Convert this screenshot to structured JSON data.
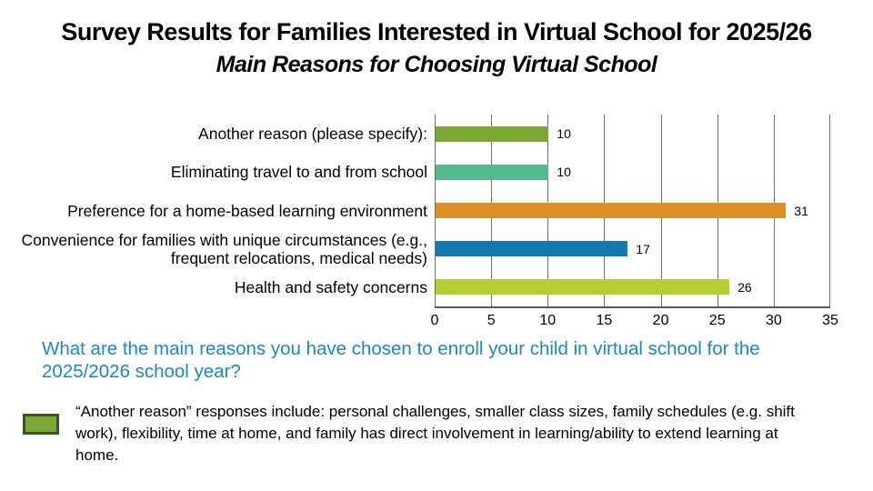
{
  "title": "Survey Results for Families Interested in Virtual School for 2025/26",
  "subtitle": "Main Reasons for Choosing Virtual School",
  "question": "What are the main reasons you have chosen to enroll your child in virtual school for the 2025/2026 school year?",
  "footnote": {
    "text": "“Another reason” responses include: personal challenges, smaller class sizes, family schedules (e.g. shift work), flexibility, time at home, and family has direct involvement in learning/ability to extend learning at home.",
    "swatch_color": "#7AA832",
    "swatch_border_color": "#375623"
  },
  "colors": {
    "question_text": "#1B87C5",
    "gridline": "#6E6E6E",
    "axis_line": "#595959",
    "value_label_text": "#000000"
  },
  "chart_data": {
    "type": "bar",
    "orientation": "horizontal",
    "title": "Main Reasons for Choosing Virtual School",
    "categories": [
      "Another reason (please specify):",
      "Eliminating travel to and from school",
      "Preference for a home-based learning environment",
      "Convenience for families with unique circumstances (e.g., frequent relocations, medical needs)",
      "Health and safety concerns"
    ],
    "values": [
      10,
      10,
      31,
      17,
      26
    ],
    "bar_colors": [
      "#7AA832",
      "#56B88D",
      "#DE8F26",
      "#1477B0",
      "#BBCE31"
    ],
    "xlabel": "",
    "ylabel": "",
    "xlim": [
      0,
      35
    ],
    "xticks": [
      0,
      5,
      10,
      15,
      20,
      25,
      30,
      35
    ],
    "grid": true,
    "value_labels_shown": true,
    "legend_position": "none"
  }
}
